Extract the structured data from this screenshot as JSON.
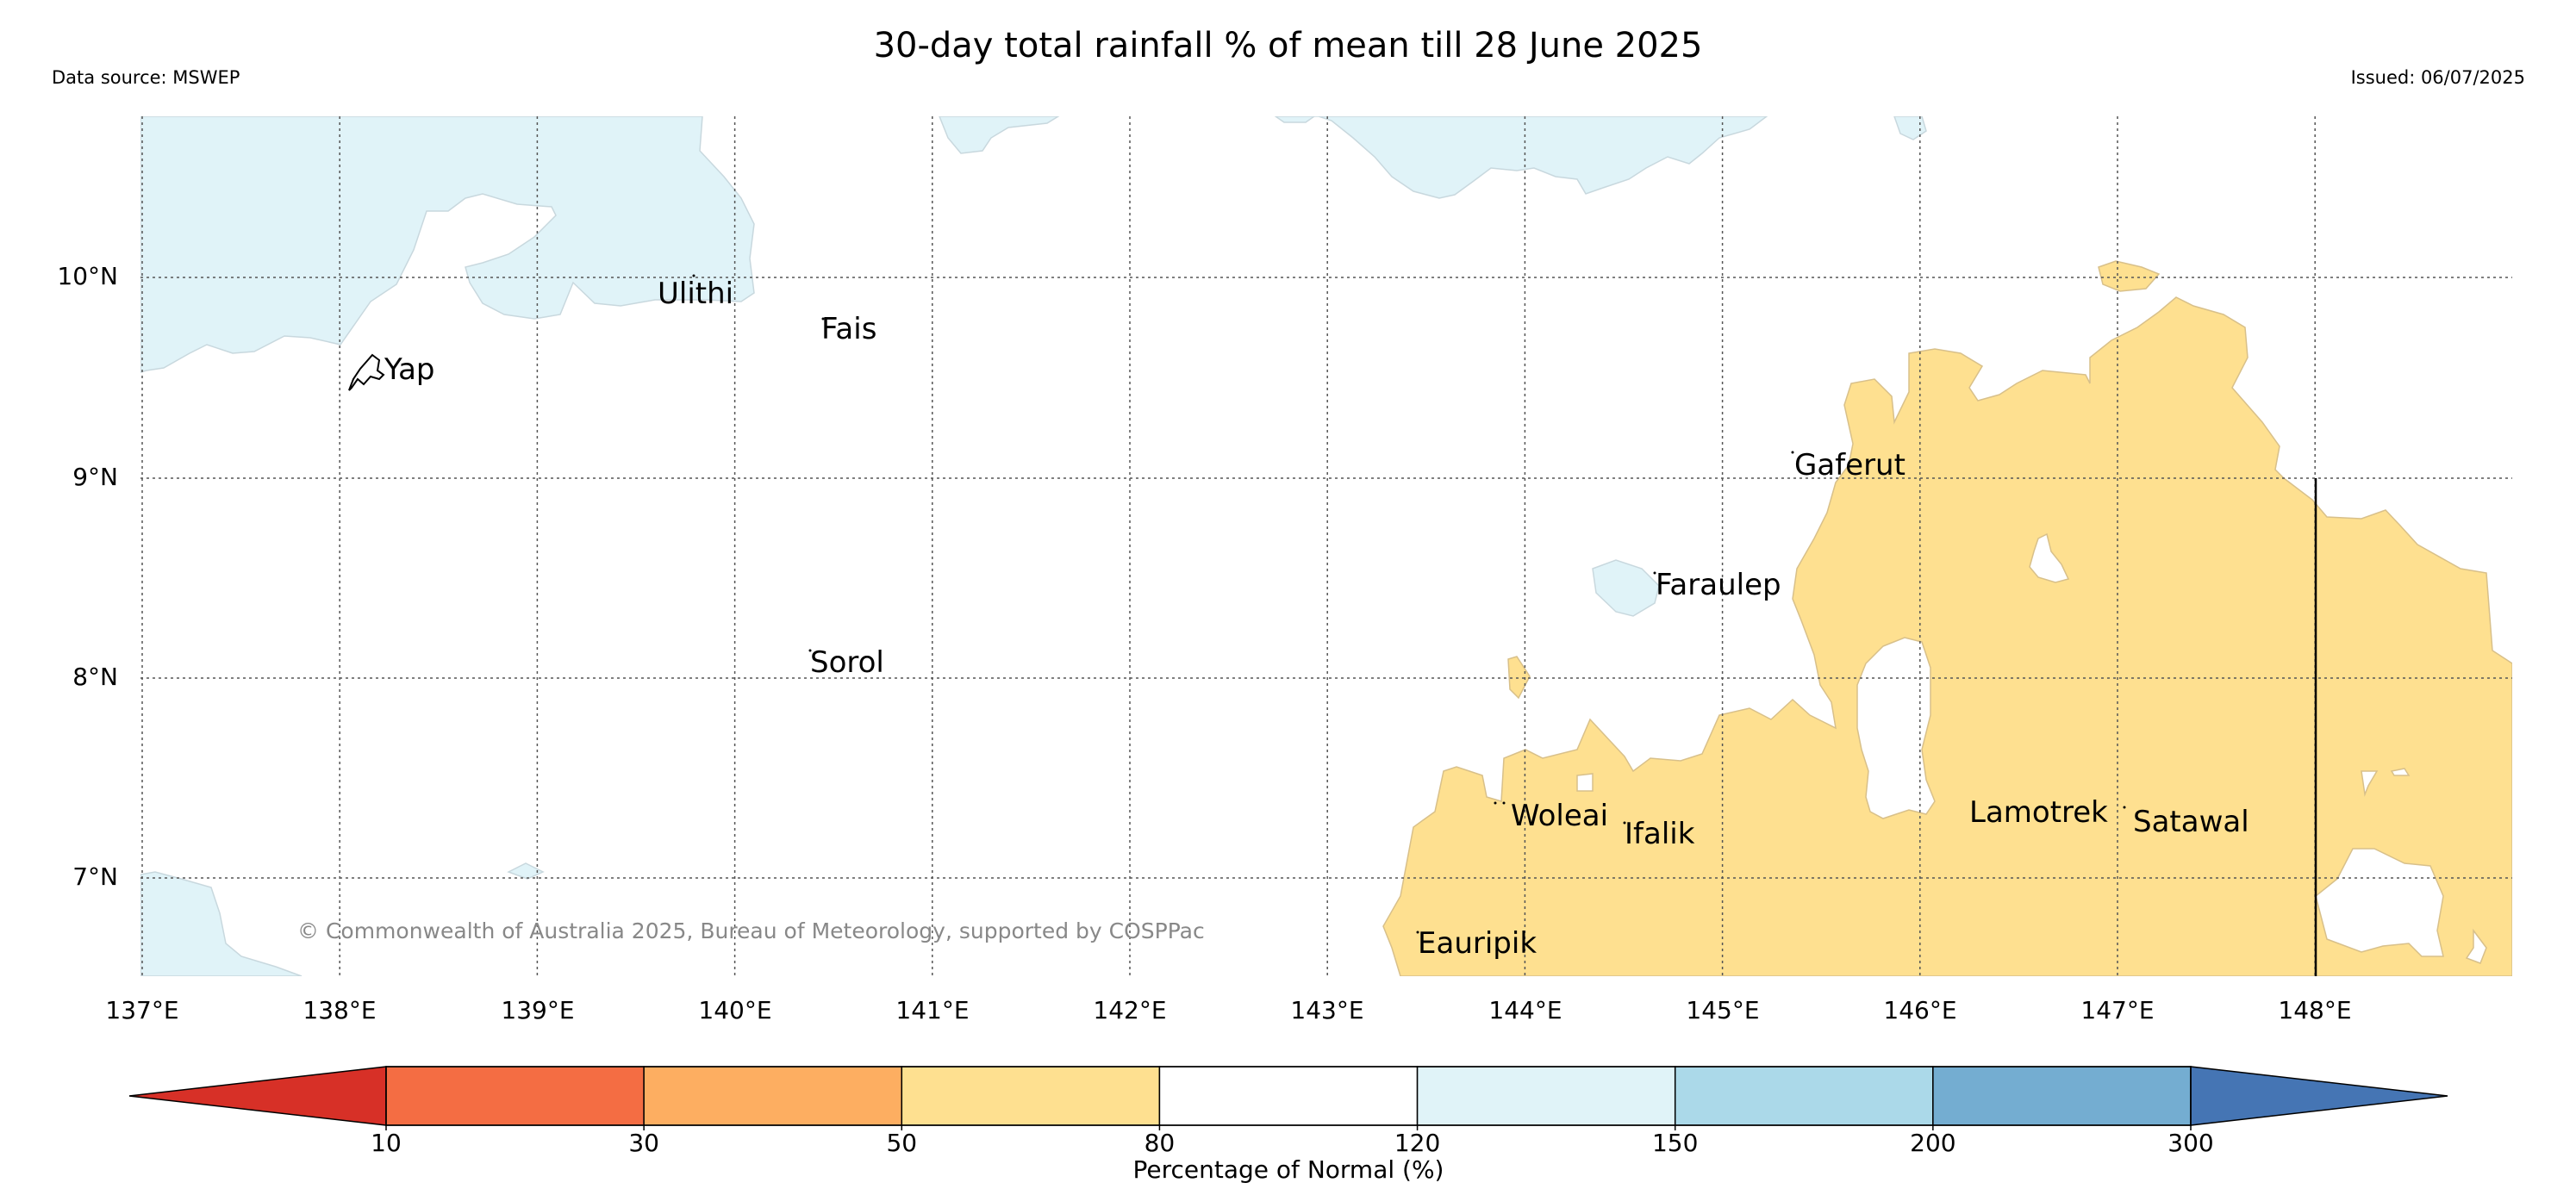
{
  "title": "30-day total rainfall % of mean till 28 June 2025",
  "data_source": "Data source: MSWEP",
  "issued": "Issued: 06/07/2025",
  "copyright": "© Commonwealth of Australia 2025, Bureau of Meteorology, supported by COSPPac",
  "latitude_labels": [
    "10°N",
    "9°N",
    "8°N",
    "7°N"
  ],
  "longitude_labels": [
    "137°E",
    "138°E",
    "139°E",
    "140°E",
    "141°E",
    "142°E",
    "143°E",
    "144°E",
    "145°E",
    "146°E",
    "147°E",
    "148°E"
  ],
  "islands": [
    {
      "name": "Ulithi"
    },
    {
      "name": "Fais"
    },
    {
      "name": "Yap"
    },
    {
      "name": "Gaferut"
    },
    {
      "name": "Faraulep"
    },
    {
      "name": "Sorol"
    },
    {
      "name": "Woleai"
    },
    {
      "name": "Ifalik"
    },
    {
      "name": "Lamotrek"
    },
    {
      "name": "Satawal"
    },
    {
      "name": "Eauripik"
    }
  ],
  "colorbar": {
    "title": "Percentage of Normal (%)",
    "ticks": [
      "10",
      "30",
      "50",
      "80",
      "120",
      "150",
      "200",
      "300"
    ],
    "colors": [
      "#d73027",
      "#f46d43",
      "#fdae61",
      "#fee090",
      "#ffffff",
      "#e0f3f8",
      "#abd9e9",
      "#74add1",
      "#4575b4"
    ]
  },
  "legend_colors": {
    "dry_50_80": "#fee090",
    "normal_80_120": "#ffffff",
    "wet_120_150": "#e0f3f8"
  }
}
